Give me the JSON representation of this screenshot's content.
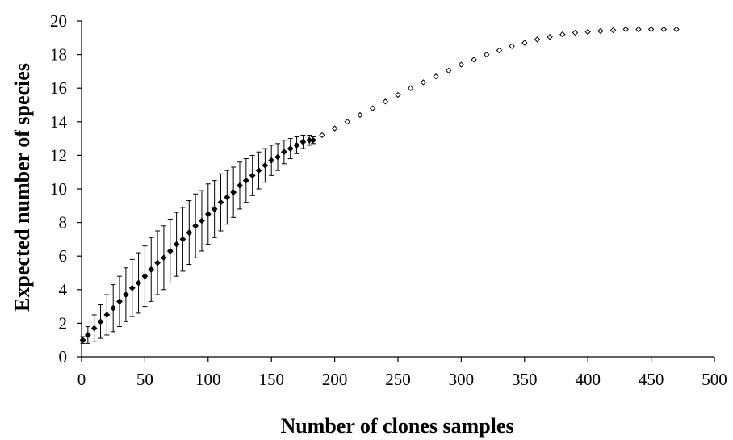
{
  "chart_data": {
    "type": "scatter",
    "xlabel": "Number of clones samples",
    "ylabel": "Expected number of species",
    "xlim": [
      0,
      500
    ],
    "ylim": [
      0,
      20
    ],
    "xticks": [
      0,
      50,
      100,
      150,
      200,
      250,
      300,
      350,
      400,
      450,
      500
    ],
    "yticks": [
      0,
      2,
      4,
      6,
      8,
      10,
      12,
      14,
      16,
      18,
      20
    ],
    "grid": false,
    "legend": "none",
    "series": [
      {
        "style": "filled-diamond-with-error-bars",
        "color": "#000000",
        "x": [
          1,
          5,
          10,
          15,
          20,
          25,
          30,
          35,
          40,
          45,
          50,
          55,
          60,
          65,
          70,
          75,
          80,
          85,
          90,
          95,
          100,
          105,
          110,
          115,
          120,
          125,
          130,
          135,
          140,
          145,
          150,
          155,
          160,
          165,
          170,
          175,
          180,
          183
        ],
        "y": [
          1.0,
          1.3,
          1.7,
          2.1,
          2.5,
          2.9,
          3.3,
          3.7,
          4.1,
          4.4,
          4.8,
          5.2,
          5.6,
          5.9,
          6.3,
          6.7,
          7.0,
          7.4,
          7.8,
          8.1,
          8.5,
          8.8,
          9.2,
          9.5,
          9.8,
          10.2,
          10.5,
          10.8,
          11.1,
          11.4,
          11.7,
          11.9,
          12.2,
          12.4,
          12.6,
          12.8,
          12.9,
          12.9
        ],
        "error": [
          0.2,
          0.5,
          0.8,
          1.0,
          1.2,
          1.4,
          1.5,
          1.6,
          1.7,
          1.8,
          1.8,
          1.9,
          1.9,
          1.9,
          1.9,
          1.9,
          1.9,
          1.9,
          1.9,
          1.8,
          1.8,
          1.7,
          1.7,
          1.6,
          1.5,
          1.4,
          1.3,
          1.2,
          1.1,
          1.0,
          0.9,
          0.8,
          0.7,
          0.6,
          0.5,
          0.4,
          0.3,
          0.2
        ]
      },
      {
        "style": "open-diamond",
        "color": "#000000",
        "x": [
          190,
          200,
          210,
          220,
          230,
          240,
          250,
          260,
          270,
          280,
          290,
          300,
          310,
          320,
          330,
          340,
          350,
          360,
          370,
          380,
          390,
          400,
          410,
          420,
          430,
          440,
          450,
          460,
          470
        ],
        "y": [
          13.2,
          13.6,
          14.0,
          14.4,
          14.8,
          15.2,
          15.6,
          16.0,
          16.35,
          16.7,
          17.05,
          17.4,
          17.7,
          18.0,
          18.25,
          18.5,
          18.7,
          18.9,
          19.05,
          19.2,
          19.3,
          19.35,
          19.4,
          19.45,
          19.5,
          19.5,
          19.5,
          19.5,
          19.5
        ]
      }
    ]
  }
}
